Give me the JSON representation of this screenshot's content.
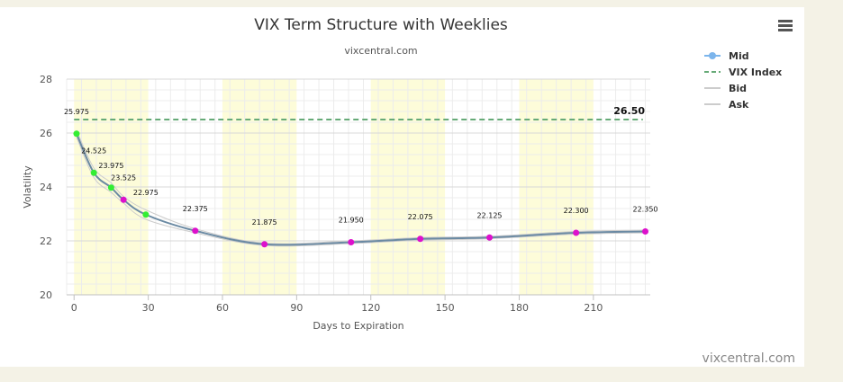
{
  "chart_data": {
    "type": "line",
    "title": "VIX Term Structure with Weeklies",
    "subtitle": "vixcentral.com",
    "xlabel": "Days to Expiration",
    "ylabel": "Volatility",
    "xlim": [
      -3,
      233
    ],
    "ylim": [
      20,
      28
    ],
    "x_ticks": [
      0,
      30,
      60,
      90,
      120,
      150,
      180,
      210
    ],
    "y_ticks": [
      20,
      22,
      24,
      26,
      28
    ],
    "grid": true,
    "legend_position": "top-right",
    "shaded_x_bands": [
      [
        0,
        30
      ],
      [
        60,
        90
      ],
      [
        120,
        150
      ],
      [
        180,
        210
      ]
    ],
    "series": [
      {
        "name": "Mid",
        "color": "#7cb5ec",
        "x": [
          1,
          8,
          15,
          20,
          29,
          49,
          77,
          112,
          140,
          168,
          203,
          231
        ],
        "y": [
          25.975,
          24.525,
          23.975,
          23.525,
          22.975,
          22.375,
          21.875,
          21.95,
          22.075,
          22.125,
          22.3,
          22.35
        ],
        "labels": [
          "25.975",
          "24.525",
          "23.975",
          "23.525",
          "22.975",
          "22.375",
          "21.875",
          "21.950",
          "22.075",
          "22.125",
          "22.300",
          "22.350"
        ],
        "point_colors": [
          "#33ee33",
          "#33ee33",
          "#33ee33",
          "#dd11cc",
          "#33ee33",
          "#dd11cc",
          "#dd11cc",
          "#dd11cc",
          "#dd11cc",
          "#dd11cc",
          "#dd11cc",
          "#dd11cc"
        ]
      },
      {
        "name": "VIX Index",
        "color": "#66aa77",
        "value": 26.5,
        "label": "26.50"
      },
      {
        "name": "Bid",
        "color": "#cccccc",
        "x": [
          1,
          8,
          15,
          20,
          29,
          49,
          77,
          112,
          140,
          168,
          203,
          231
        ],
        "y": [
          25.85,
          24.35,
          23.8,
          23.4,
          22.8,
          22.3,
          21.83,
          21.9,
          22.03,
          22.08,
          22.25,
          22.3
        ]
      },
      {
        "name": "Ask",
        "color": "#cccccc",
        "x": [
          1,
          8,
          15,
          20,
          29,
          49,
          77,
          112,
          140,
          168,
          203,
          231
        ],
        "y": [
          26.1,
          24.7,
          24.15,
          23.65,
          23.15,
          22.45,
          21.92,
          22.0,
          22.12,
          22.17,
          22.35,
          22.4
        ]
      }
    ]
  },
  "menu_icon": "hamburger-menu-icon",
  "credit": "vixcentral.com"
}
